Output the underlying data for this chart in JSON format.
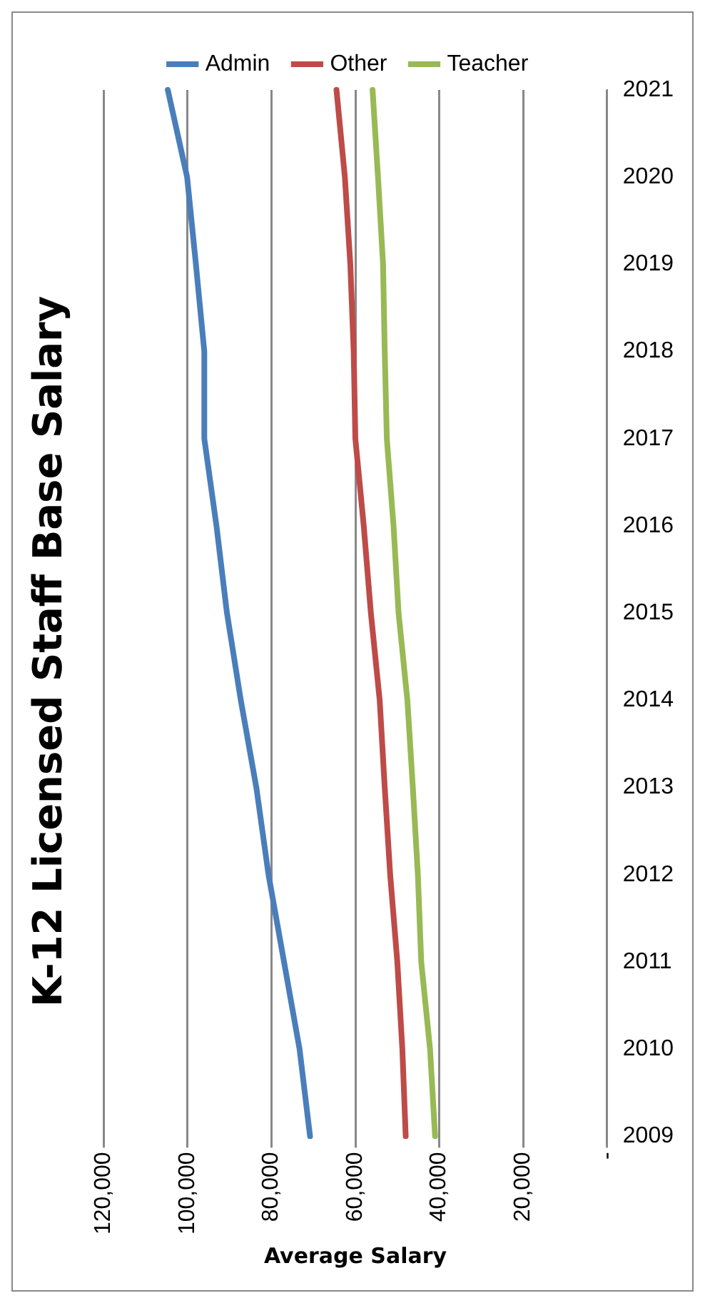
{
  "chart_data": {
    "type": "line",
    "orientation": "horizontal",
    "title": "K-12 Licensed Staff Base Salary",
    "xlabel": "Average Salary",
    "categories": [
      "2021",
      "2020",
      "2019",
      "2018",
      "2017",
      "2016",
      "2015",
      "2014",
      "2013",
      "2012",
      "2011",
      "2010",
      "2009"
    ],
    "series": [
      {
        "name": "Admin",
        "color": "#4a7ebb",
        "values": [
          104700,
          100100,
          98000,
          96000,
          96000,
          93100,
          90600,
          87300,
          83600,
          80700,
          77000,
          73300,
          70800
        ]
      },
      {
        "name": "Other",
        "color": "#be4b48",
        "values": [
          64500,
          62500,
          61200,
          60400,
          60000,
          58000,
          56300,
          54200,
          53000,
          51700,
          50000,
          48800,
          48000
        ]
      },
      {
        "name": "Teacher",
        "color": "#98b954",
        "values": [
          55900,
          54600,
          53400,
          53000,
          52500,
          50900,
          49700,
          47600,
          46300,
          45100,
          44300,
          42200,
          41000
        ]
      }
    ],
    "xlim": [
      120000,
      0
    ],
    "xticks": [
      {
        "value": 0,
        "label": "-"
      },
      {
        "value": 20000,
        "label": "20,000"
      },
      {
        "value": 40000,
        "label": "40,000"
      },
      {
        "value": 60000,
        "label": "60,000"
      },
      {
        "value": 80000,
        "label": "80,000"
      },
      {
        "value": 100000,
        "label": "100,000"
      },
      {
        "value": 120000,
        "label": "120,000"
      }
    ],
    "grid": "x",
    "legend": "top",
    "marker": "none",
    "line_style": "solid"
  }
}
